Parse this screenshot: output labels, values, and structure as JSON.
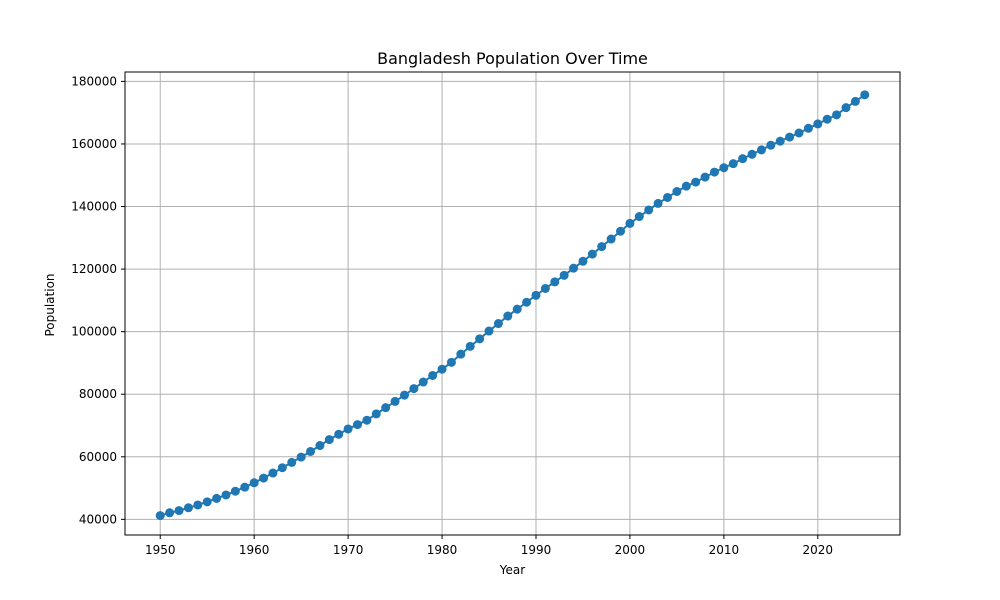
{
  "chart_data": {
    "type": "line",
    "title": "Bangladesh Population Over Time",
    "xlabel": "Year",
    "ylabel": "Population",
    "xlim": [
      1946.25,
      2028.75
    ],
    "ylim": [
      35000,
      183000
    ],
    "xticks": [
      1950,
      1960,
      1970,
      1980,
      1990,
      2000,
      2010,
      2020
    ],
    "yticks": [
      40000,
      60000,
      80000,
      100000,
      120000,
      140000,
      160000,
      180000
    ],
    "grid": true,
    "marker": "circle",
    "color": "#1f77b4",
    "series": [
      {
        "x": [
          1950,
          1951,
          1952,
          1953,
          1954,
          1955,
          1956,
          1957,
          1958,
          1959,
          1960,
          1961,
          1962,
          1963,
          1964,
          1965,
          1966,
          1967,
          1968,
          1969,
          1970,
          1971,
          1972,
          1973,
          1974,
          1975,
          1976,
          1977,
          1978,
          1979,
          1980,
          1981,
          1982,
          1983,
          1984,
          1985,
          1986,
          1987,
          1988,
          1989,
          1990,
          1991,
          1992,
          1993,
          1994,
          1995,
          1996,
          1997,
          1998,
          1999,
          2000,
          2001,
          2002,
          2003,
          2004,
          2005,
          2006,
          2007,
          2008,
          2009,
          2010,
          2011,
          2012,
          2013,
          2014,
          2015,
          2016,
          2017,
          2018,
          2019,
          2020,
          2021,
          2022,
          2023,
          2024,
          2025
        ],
        "values": [
          41200,
          42100,
          42800,
          43700,
          44600,
          45600,
          46700,
          47800,
          49000,
          50300,
          51700,
          53200,
          54800,
          56500,
          58200,
          59900,
          61700,
          63600,
          65500,
          67200,
          68900,
          70300,
          71700,
          73700,
          75700,
          77700,
          79700,
          81800,
          83900,
          86000,
          88000,
          90200,
          92800,
          95300,
          97700,
          100200,
          102600,
          105000,
          107200,
          109400,
          111600,
          113800,
          115900,
          118000,
          120300,
          122500,
          124800,
          127200,
          129600,
          132100,
          134600,
          136800,
          138900,
          141000,
          142900,
          144800,
          146500,
          147800,
          149400,
          151000,
          152400,
          153700,
          155300,
          156700,
          158100,
          159600,
          160900,
          162200,
          163500,
          165000,
          166400,
          167900,
          169300,
          171600,
          173600,
          175700
        ]
      }
    ]
  }
}
